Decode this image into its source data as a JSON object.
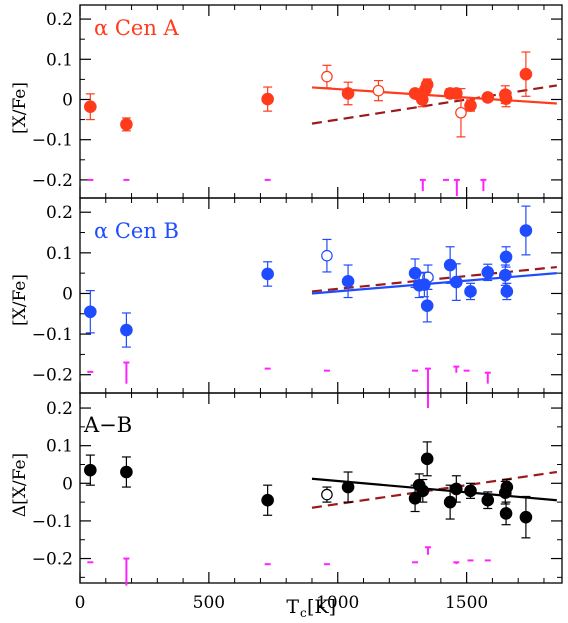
{
  "chart_data": {
    "type": "scatter",
    "x_axis": {
      "label": "T",
      "label_sub": "c",
      "label_suffix": " [K]",
      "lim": [
        0,
        1870
      ],
      "ticks": [
        0,
        500,
        1000,
        1500
      ],
      "tick_labels": [
        "0",
        "500",
        "1000",
        "1500"
      ]
    },
    "panels": [
      {
        "title": "α  Cen  A",
        "title_color": "#ff3b1c",
        "ylabel": "[X/Fe]",
        "ylim": [
          -0.245,
          0.235
        ],
        "yticks": [
          0.2,
          0.1,
          0,
          -0.1,
          -0.2
        ],
        "ytick_labels": [
          "0.2",
          "0.1",
          "0",
          "−0.1",
          "−0.2"
        ],
        "color": "#ff3b1c",
        "filled": [
          {
            "x": 40,
            "y": -0.018,
            "err": 0.032
          },
          {
            "x": 180,
            "y": -0.062,
            "err": 0.016
          },
          {
            "x": 728,
            "y": 0.001,
            "err": 0.03
          },
          {
            "x": 1040,
            "y": 0.015,
            "err": 0.028
          },
          {
            "x": 1300,
            "y": 0.015,
            "err": 0.01
          },
          {
            "x": 1316,
            "y": 0.012,
            "err": 0.012
          },
          {
            "x": 1328,
            "y": 0.0,
            "err": 0.018
          },
          {
            "x": 1340,
            "y": 0.025,
            "err": 0.014
          },
          {
            "x": 1347,
            "y": 0.037,
            "err": 0.014
          },
          {
            "x": 1436,
            "y": 0.015,
            "err": 0.012
          },
          {
            "x": 1460,
            "y": 0.015,
            "err": 0.012
          },
          {
            "x": 1515,
            "y": -0.015,
            "err": 0.014
          },
          {
            "x": 1582,
            "y": 0.005,
            "err": 0.01
          },
          {
            "x": 1650,
            "y": 0.012,
            "err": 0.022
          },
          {
            "x": 1653,
            "y": 0.002,
            "err": 0.02
          },
          {
            "x": 1730,
            "y": 0.063,
            "err": 0.055
          }
        ],
        "open": [
          {
            "x": 958,
            "y": 0.057,
            "err": 0.028
          },
          {
            "x": 1158,
            "y": 0.022,
            "err": 0.025
          },
          {
            "x": 1478,
            "y": -0.033,
            "err": 0.06
          }
        ],
        "fit_line": {
          "color": "#ff3b1c",
          "x": [
            900,
            1850
          ],
          "y": [
            0.03,
            -0.01
          ]
        },
        "ref_line": {
          "color": "#9b1b1b",
          "x": [
            900,
            1850
          ],
          "y": [
            -0.06,
            0.035
          ]
        },
        "magenta_bars": [
          {
            "x": 40,
            "y1": -0.2,
            "y2": -0.2
          },
          {
            "x": 180,
            "y1": -0.2,
            "y2": -0.2
          },
          {
            "x": 728,
            "y1": -0.2,
            "y2": -0.2
          },
          {
            "x": 1330,
            "y1": -0.2,
            "y2": -0.228
          },
          {
            "x": 1420,
            "y1": -0.2,
            "y2": -0.2
          },
          {
            "x": 1462,
            "y1": -0.2,
            "y2": -0.24
          },
          {
            "x": 1565,
            "y1": -0.2,
            "y2": -0.228
          }
        ]
      },
      {
        "title": "α  Cen  B",
        "title_color": "#1f4cff",
        "ylabel": "[X/Fe]",
        "ylim": [
          -0.245,
          0.235
        ],
        "yticks": [
          0.2,
          0.1,
          0,
          -0.1,
          -0.2
        ],
        "ytick_labels": [
          "0.2",
          "0.1",
          "0",
          "−0.1",
          "−0.2"
        ],
        "color": "#1f4cff",
        "filled": [
          {
            "x": 40,
            "y": -0.045,
            "err": 0.052
          },
          {
            "x": 180,
            "y": -0.09,
            "err": 0.042
          },
          {
            "x": 728,
            "y": 0.048,
            "err": 0.03
          },
          {
            "x": 1040,
            "y": 0.03,
            "err": 0.04
          },
          {
            "x": 1300,
            "y": 0.05,
            "err": 0.035
          },
          {
            "x": 1316,
            "y": 0.02,
            "err": 0.03
          },
          {
            "x": 1336,
            "y": 0.022,
            "err": 0.03
          },
          {
            "x": 1347,
            "y": -0.03,
            "err": 0.04
          },
          {
            "x": 1436,
            "y": 0.07,
            "err": 0.045
          },
          {
            "x": 1460,
            "y": 0.028,
            "err": 0.045
          },
          {
            "x": 1515,
            "y": 0.005,
            "err": 0.02
          },
          {
            "x": 1582,
            "y": 0.052,
            "err": 0.02
          },
          {
            "x": 1650,
            "y": 0.045,
            "err": 0.025
          },
          {
            "x": 1653,
            "y": 0.09,
            "err": 0.025
          },
          {
            "x": 1656,
            "y": 0.005,
            "err": 0.02
          },
          {
            "x": 1730,
            "y": 0.155,
            "err": 0.06
          }
        ],
        "open": [
          {
            "x": 958,
            "y": 0.093,
            "err": 0.04
          },
          {
            "x": 1350,
            "y": 0.04,
            "err": 0.03
          }
        ],
        "fit_line": {
          "color": "#1f4cff",
          "x": [
            900,
            1850
          ],
          "y": [
            0.0,
            0.05
          ]
        },
        "ref_line": {
          "color": "#9b1b1b",
          "x": [
            900,
            1850
          ],
          "y": [
            0.005,
            0.065
          ]
        },
        "magenta_bars": [
          {
            "x": 40,
            "y1": -0.193,
            "y2": -0.193
          },
          {
            "x": 180,
            "y1": -0.17,
            "y2": -0.222
          },
          {
            "x": 728,
            "y1": -0.185,
            "y2": -0.185
          },
          {
            "x": 958,
            "y1": -0.19,
            "y2": -0.19
          },
          {
            "x": 1300,
            "y1": -0.19,
            "y2": -0.19
          },
          {
            "x": 1350,
            "y1": -0.185,
            "y2": -0.282
          },
          {
            "x": 1460,
            "y1": -0.18,
            "y2": -0.195
          },
          {
            "x": 1500,
            "y1": -0.19,
            "y2": -0.19
          },
          {
            "x": 1582,
            "y1": -0.195,
            "y2": -0.222
          }
        ]
      },
      {
        "title": "A−B",
        "title_color": "#000000",
        "ylabel": "Δ[X/Fe]",
        "ylim": [
          -0.265,
          0.24
        ],
        "yticks": [
          0.2,
          0.1,
          0,
          -0.1,
          -0.2
        ],
        "ytick_labels": [
          "0.2",
          "0.1",
          "0",
          "−0.1",
          "−0.2"
        ],
        "color": "#000000",
        "filled": [
          {
            "x": 40,
            "y": 0.035,
            "err": 0.04
          },
          {
            "x": 180,
            "y": 0.03,
            "err": 0.04
          },
          {
            "x": 728,
            "y": -0.045,
            "err": 0.04
          },
          {
            "x": 1040,
            "y": -0.01,
            "err": 0.04
          },
          {
            "x": 1300,
            "y": -0.04,
            "err": 0.035
          },
          {
            "x": 1316,
            "y": -0.005,
            "err": 0.03
          },
          {
            "x": 1330,
            "y": -0.02,
            "err": 0.03
          },
          {
            "x": 1347,
            "y": 0.065,
            "err": 0.045
          },
          {
            "x": 1436,
            "y": -0.05,
            "err": 0.045
          },
          {
            "x": 1460,
            "y": -0.015,
            "err": 0.035
          },
          {
            "x": 1515,
            "y": -0.02,
            "err": 0.02
          },
          {
            "x": 1582,
            "y": -0.045,
            "err": 0.022
          },
          {
            "x": 1650,
            "y": -0.025,
            "err": 0.03
          },
          {
            "x": 1653,
            "y": -0.08,
            "err": 0.03
          },
          {
            "x": 1656,
            "y": -0.01,
            "err": 0.02
          },
          {
            "x": 1730,
            "y": -0.09,
            "err": 0.055
          }
        ],
        "open": [
          {
            "x": 958,
            "y": -0.03,
            "err": 0.02
          }
        ],
        "fit_line": {
          "color": "#000000",
          "x": [
            900,
            1850
          ],
          "y": [
            0.012,
            -0.045
          ]
        },
        "ref_line": {
          "color": "#9b1b1b",
          "x": [
            900,
            1850
          ],
          "y": [
            -0.065,
            0.03
          ]
        },
        "magenta_bars": [
          {
            "x": 40,
            "y1": -0.21,
            "y2": -0.21
          },
          {
            "x": 180,
            "y1": -0.2,
            "y2": -0.272
          },
          {
            "x": 728,
            "y1": -0.215,
            "y2": -0.215
          },
          {
            "x": 958,
            "y1": -0.215,
            "y2": -0.215
          },
          {
            "x": 1300,
            "y1": -0.21,
            "y2": -0.21
          },
          {
            "x": 1350,
            "y1": -0.17,
            "y2": -0.19
          },
          {
            "x": 1460,
            "y1": -0.21,
            "y2": -0.215
          },
          {
            "x": 1515,
            "y1": -0.205,
            "y2": -0.205
          },
          {
            "x": 1582,
            "y1": -0.205,
            "y2": -0.205
          }
        ]
      }
    ]
  }
}
